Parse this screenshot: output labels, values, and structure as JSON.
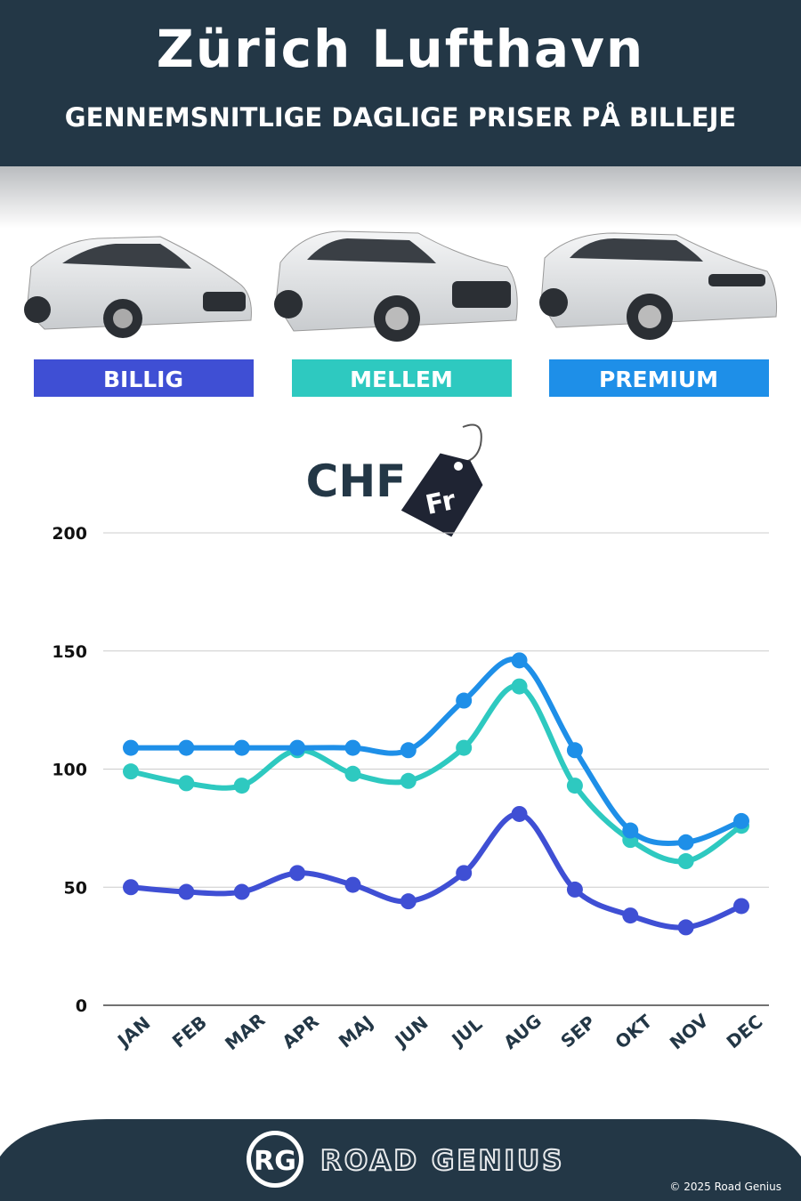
{
  "title": "Zürich Lufthavn",
  "subtitle": "GENNEMSNITLIGE DAGLIGE PRISER PÅ BILLEJE",
  "currency": "CHF",
  "tag": "Fr",
  "chart_data": {
    "type": "line",
    "categories": [
      "JAN",
      "FEB",
      "MAR",
      "APR",
      "MAJ",
      "JUN",
      "JUL",
      "AUG",
      "SEP",
      "OKT",
      "NOV",
      "DEC"
    ],
    "series": [
      {
        "name": "BILLIG",
        "color": "#3f4fd4",
        "values": [
          50,
          48,
          48,
          56,
          51,
          44,
          56,
          81,
          49,
          38,
          33,
          42
        ]
      },
      {
        "name": "MELLEM",
        "color": "#2ec9c0",
        "values": [
          99,
          94,
          93,
          108,
          98,
          95,
          109,
          135,
          93,
          70,
          61,
          76
        ]
      },
      {
        "name": "PREMIUM",
        "color": "#1e8fe8",
        "values": [
          109,
          109,
          109,
          109,
          109,
          108,
          129,
          146,
          108,
          74,
          69,
          78
        ]
      }
    ],
    "ylim": [
      0,
      200
    ],
    "yticks": [
      0,
      50,
      100,
      150,
      200
    ],
    "grid": true
  },
  "footer": {
    "logo": "RG",
    "brand": "ROAD GENIUS",
    "copyright": "© 2025 Road Genius"
  }
}
